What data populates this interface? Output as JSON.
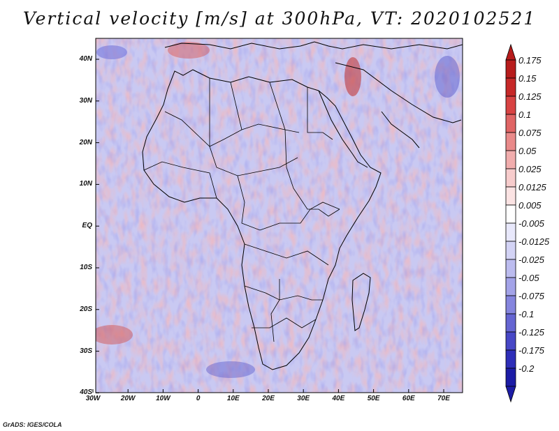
{
  "title": "Vertical velocity [m/s] at 300hPa, VT: 2020102521",
  "credit": "GrADS: IGES/COLA",
  "map": {
    "latitude_labels": [
      "40N",
      "30N",
      "20N",
      "10N",
      "EQ",
      "10S",
      "20S",
      "30S",
      "40S"
    ],
    "longitude_labels": [
      "30W",
      "20W",
      "10W",
      "0",
      "10E",
      "20E",
      "30E",
      "40E",
      "50E",
      "60E",
      "70E"
    ]
  },
  "colorbar": {
    "labels": [
      "0.175",
      "0.15",
      "0.125",
      "0.1",
      "0.075",
      "0.05",
      "0.025",
      "0.0125",
      "0.005",
      "-0.005",
      "-0.0125",
      "-0.025",
      "-0.05",
      "-0.075",
      "-0.1",
      "-0.125",
      "-0.175",
      "-0.2"
    ],
    "colors": [
      "#b71c1c",
      "#c62828",
      "#d84343",
      "#e06565",
      "#e98a8a",
      "#f1adad",
      "#f7cccc",
      "#fbe3e3",
      "#ffffff",
      "#e8e8fb",
      "#d3d3f5",
      "#bcbcef",
      "#a3a3e8",
      "#8585de",
      "#6565d2",
      "#4747c6",
      "#2e2eb8",
      "#1c1ca6"
    ]
  },
  "colors": {
    "map_background": "#c9c9f2",
    "positive": "#f3b0aa",
    "negative": "#a6a6ea",
    "coastline": "#000000"
  }
}
